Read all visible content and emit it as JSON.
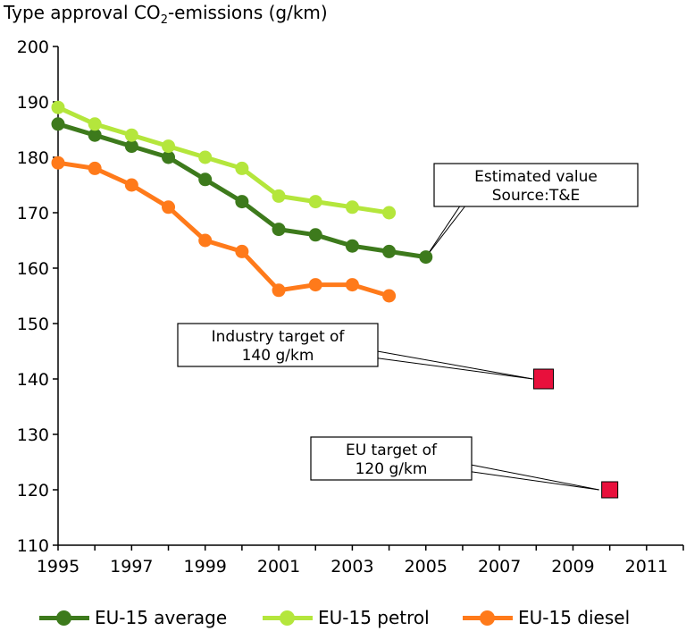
{
  "chart_data": {
    "type": "line",
    "title_main": "Type approval CO",
    "title_sub": "2",
    "title_tail": "-emissions (g/km)",
    "x": [
      1995,
      1996,
      1997,
      1998,
      1999,
      2000,
      2001,
      2002,
      2003,
      2004,
      2005
    ],
    "xlim": [
      1995,
      2012
    ],
    "ylim": [
      110,
      200
    ],
    "x_ticks": [
      "1995",
      "1997",
      "1999",
      "2001",
      "2003",
      "2005",
      "2007",
      "2009",
      "2011"
    ],
    "y_ticks": [
      "110",
      "120",
      "130",
      "140",
      "150",
      "160",
      "170",
      "180",
      "190",
      "200"
    ],
    "series": [
      {
        "name": "EU-15 average",
        "color": "#3d7a1c",
        "values": [
          186,
          184,
          182,
          180,
          176,
          172,
          167,
          166,
          164,
          163,
          162
        ]
      },
      {
        "name": "EU-15 petrol",
        "color": "#b4e63c",
        "values": [
          189,
          186,
          184,
          182,
          180,
          178,
          173,
          172,
          171,
          170,
          null
        ]
      },
      {
        "name": "EU-15 diesel",
        "color": "#ff7a1a",
        "values": [
          179,
          178,
          175,
          171,
          165,
          163,
          156,
          157,
          157,
          155,
          null
        ]
      }
    ],
    "targets": [
      {
        "x": 2008.2,
        "y": 140,
        "color": "#e8103c",
        "label_lines": [
          "Industry target of",
          "140 g/km"
        ]
      },
      {
        "x": 2010,
        "y": 120,
        "color": "#e8103c",
        "label_lines": [
          "EU target of",
          "120 g/km"
        ]
      }
    ],
    "callout": {
      "x": 2005,
      "y": 162,
      "label_lines": [
        "Estimated value",
        "Source:T&E"
      ]
    },
    "grid": false,
    "legend_position": "bottom"
  }
}
